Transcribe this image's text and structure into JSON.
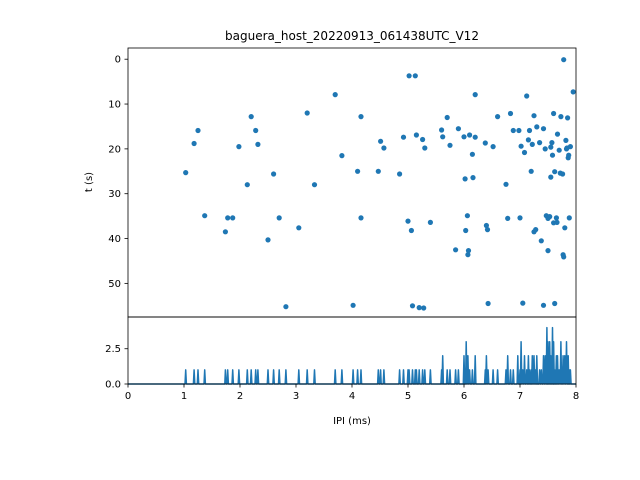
{
  "chart_data": [
    {
      "type": "scatter",
      "title": "baguera_host_20220913_061438UTC_V12",
      "xlabel": "",
      "ylabel": "t (s)",
      "xlim": [
        0,
        8
      ],
      "ylim": [
        57.5,
        -2.5
      ],
      "y_inverted": true,
      "yticks": [
        0,
        10,
        20,
        30,
        40,
        50
      ],
      "color": "#1f77b4",
      "points": [
        [
          1.03,
          25.3
        ],
        [
          1.18,
          18.8
        ],
        [
          1.25,
          15.9
        ],
        [
          1.37,
          34.9
        ],
        [
          1.74,
          38.5
        ],
        [
          1.78,
          35.4
        ],
        [
          1.87,
          35.4
        ],
        [
          1.98,
          19.5
        ],
        [
          2.13,
          28.0
        ],
        [
          2.2,
          12.8
        ],
        [
          2.28,
          15.9
        ],
        [
          2.32,
          19.0
        ],
        [
          2.5,
          40.3
        ],
        [
          2.6,
          25.6
        ],
        [
          2.7,
          35.4
        ],
        [
          2.82,
          55.2
        ],
        [
          3.05,
          37.6
        ],
        [
          3.2,
          12.0
        ],
        [
          3.33,
          28.0
        ],
        [
          3.7,
          7.9
        ],
        [
          3.82,
          21.5
        ],
        [
          4.02,
          54.9
        ],
        [
          4.1,
          25.0
        ],
        [
          4.16,
          12.8
        ],
        [
          4.16,
          35.4
        ],
        [
          4.47,
          25.0
        ],
        [
          4.51,
          18.3
        ],
        [
          4.57,
          19.8
        ],
        [
          4.85,
          25.6
        ],
        [
          4.92,
          17.4
        ],
        [
          5.0,
          36.1
        ],
        [
          5.02,
          3.7
        ],
        [
          5.06,
          38.2
        ],
        [
          5.08,
          55.0
        ],
        [
          5.13,
          3.7
        ],
        [
          5.15,
          16.9
        ],
        [
          5.2,
          55.4
        ],
        [
          5.26,
          17.9
        ],
        [
          5.28,
          55.5
        ],
        [
          5.3,
          19.8
        ],
        [
          5.4,
          36.4
        ],
        [
          5.6,
          15.8
        ],
        [
          5.62,
          17.3
        ],
        [
          5.7,
          13.0
        ],
        [
          5.75,
          19.2
        ],
        [
          5.85,
          42.5
        ],
        [
          5.9,
          15.5
        ],
        [
          6.0,
          17.3
        ],
        [
          6.02,
          26.7
        ],
        [
          6.03,
          38.2
        ],
        [
          6.06,
          34.9
        ],
        [
          6.07,
          43.6
        ],
        [
          6.08,
          42.7
        ],
        [
          6.1,
          16.9
        ],
        [
          6.15,
          21.2
        ],
        [
          6.16,
          26.4
        ],
        [
          6.2,
          7.9
        ],
        [
          6.2,
          17.4
        ],
        [
          6.38,
          18.7
        ],
        [
          6.4,
          37.1
        ],
        [
          6.42,
          38.0
        ],
        [
          6.43,
          54.5
        ],
        [
          6.52,
          19.5
        ],
        [
          6.6,
          12.8
        ],
        [
          6.75,
          27.9
        ],
        [
          6.78,
          35.5
        ],
        [
          6.83,
          12.1
        ],
        [
          6.88,
          15.9
        ],
        [
          6.98,
          15.9
        ],
        [
          7.0,
          35.4
        ],
        [
          7.02,
          19.4
        ],
        [
          7.05,
          54.4
        ],
        [
          7.08,
          20.8
        ],
        [
          7.12,
          8.2
        ],
        [
          7.15,
          18.0
        ],
        [
          7.17,
          15.9
        ],
        [
          7.2,
          25.0
        ],
        [
          7.22,
          19.0
        ],
        [
          7.25,
          12.6
        ],
        [
          7.25,
          38.5
        ],
        [
          7.28,
          38.0
        ],
        [
          7.3,
          15.1
        ],
        [
          7.35,
          18.6
        ],
        [
          7.38,
          40.5
        ],
        [
          7.42,
          54.9
        ],
        [
          7.42,
          15.5
        ],
        [
          7.45,
          20.0
        ],
        [
          7.47,
          34.9
        ],
        [
          7.5,
          42.7
        ],
        [
          7.5,
          35.5
        ],
        [
          7.53,
          35.1
        ],
        [
          7.55,
          19.6
        ],
        [
          7.55,
          26.3
        ],
        [
          7.57,
          18.6
        ],
        [
          7.58,
          21.4
        ],
        [
          7.6,
          36.5
        ],
        [
          7.6,
          12.1
        ],
        [
          7.62,
          54.5
        ],
        [
          7.62,
          25.1
        ],
        [
          7.65,
          35.4
        ],
        [
          7.66,
          36.4
        ],
        [
          7.67,
          16.7
        ],
        [
          7.7,
          20.3
        ],
        [
          7.72,
          25.4
        ],
        [
          7.73,
          12.8
        ],
        [
          7.76,
          25.6
        ],
        [
          7.77,
          43.6
        ],
        [
          7.78,
          0.1
        ],
        [
          7.78,
          44.1
        ],
        [
          7.8,
          37.6
        ],
        [
          7.82,
          18.1
        ],
        [
          7.83,
          20.0
        ],
        [
          7.84,
          19.8
        ],
        [
          7.85,
          13.1
        ],
        [
          7.86,
          22.0
        ],
        [
          7.87,
          21.4
        ],
        [
          7.88,
          35.4
        ],
        [
          7.9,
          19.5
        ],
        [
          7.95,
          7.3
        ]
      ]
    },
    {
      "type": "line",
      "xlabel": "IPI (ms)",
      "ylabel": "",
      "xlim": [
        0,
        8
      ],
      "ylim": [
        0,
        4.75
      ],
      "xticks": [
        0,
        1,
        2,
        3,
        4,
        5,
        6,
        7,
        8
      ],
      "yticks": [
        0.0,
        2.5
      ],
      "color": "#1f77b4",
      "spikes": [
        [
          1.03,
          1
        ],
        [
          1.18,
          1
        ],
        [
          1.25,
          1
        ],
        [
          1.37,
          1
        ],
        [
          1.74,
          1
        ],
        [
          1.78,
          1
        ],
        [
          1.87,
          1
        ],
        [
          1.98,
          1
        ],
        [
          2.13,
          1
        ],
        [
          2.2,
          1
        ],
        [
          2.28,
          1
        ],
        [
          2.32,
          1
        ],
        [
          2.5,
          1
        ],
        [
          2.6,
          1
        ],
        [
          2.7,
          1
        ],
        [
          2.82,
          1
        ],
        [
          3.05,
          1
        ],
        [
          3.2,
          1
        ],
        [
          3.33,
          1
        ],
        [
          3.7,
          1
        ],
        [
          3.82,
          1
        ],
        [
          4.02,
          1
        ],
        [
          4.1,
          1
        ],
        [
          4.16,
          1
        ],
        [
          4.47,
          1
        ],
        [
          4.51,
          1
        ],
        [
          4.57,
          1
        ],
        [
          4.85,
          1
        ],
        [
          4.92,
          1
        ],
        [
          5.0,
          1
        ],
        [
          5.02,
          1
        ],
        [
          5.08,
          1
        ],
        [
          5.13,
          1
        ],
        [
          5.15,
          1
        ],
        [
          5.2,
          1
        ],
        [
          5.26,
          1
        ],
        [
          5.3,
          1
        ],
        [
          5.4,
          1
        ],
        [
          5.6,
          1
        ],
        [
          5.62,
          2
        ],
        [
          5.7,
          1
        ],
        [
          5.75,
          1
        ],
        [
          5.85,
          1
        ],
        [
          5.9,
          1
        ],
        [
          6.0,
          2
        ],
        [
          6.02,
          1
        ],
        [
          6.04,
          3
        ],
        [
          6.07,
          2
        ],
        [
          6.1,
          1
        ],
        [
          6.15,
          1
        ],
        [
          6.2,
          2
        ],
        [
          6.38,
          1
        ],
        [
          6.4,
          2
        ],
        [
          6.43,
          1
        ],
        [
          6.52,
          1
        ],
        [
          6.6,
          1
        ],
        [
          6.75,
          1
        ],
        [
          6.78,
          2
        ],
        [
          6.83,
          1
        ],
        [
          6.88,
          1
        ],
        [
          6.96,
          2
        ],
        [
          7.0,
          1
        ],
        [
          7.02,
          3
        ],
        [
          7.05,
          1
        ],
        [
          7.08,
          2
        ],
        [
          7.12,
          1
        ],
        [
          7.15,
          2
        ],
        [
          7.17,
          1
        ],
        [
          7.2,
          1
        ],
        [
          7.22,
          2
        ],
        [
          7.25,
          2
        ],
        [
          7.28,
          1
        ],
        [
          7.3,
          2
        ],
        [
          7.35,
          1
        ],
        [
          7.38,
          1
        ],
        [
          7.42,
          2
        ],
        [
          7.45,
          2
        ],
        [
          7.48,
          4
        ],
        [
          7.5,
          3
        ],
        [
          7.53,
          3
        ],
        [
          7.55,
          2
        ],
        [
          7.58,
          4
        ],
        [
          7.6,
          3
        ],
        [
          7.62,
          1
        ],
        [
          7.65,
          2
        ],
        [
          7.67,
          2
        ],
        [
          7.7,
          1
        ],
        [
          7.73,
          3
        ],
        [
          7.77,
          2
        ],
        [
          7.8,
          2
        ],
        [
          7.83,
          3
        ],
        [
          7.86,
          2
        ],
        [
          7.88,
          1
        ],
        [
          7.9,
          1
        ]
      ]
    }
  ]
}
